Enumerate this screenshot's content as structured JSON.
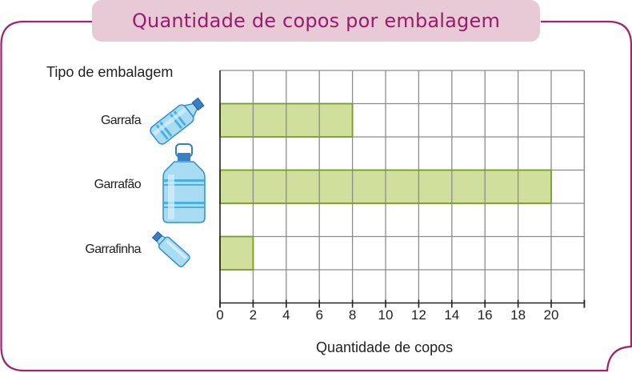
{
  "title": "Quantidade de copos por embalagem",
  "colors": {
    "frame": "#a3216f",
    "title_bg": "#e8cad6",
    "title_text": "#9c1a6b",
    "bar_fill": "#d1df9c",
    "bar_stroke": "#76a028",
    "grid": "#8c8c8c",
    "axis": "#222222"
  },
  "y_axis_title": "Tipo de embalagem",
  "x_axis_title": "Quantidade de copos",
  "x_ticks": [
    "0",
    "2",
    "4",
    "6",
    "8",
    "10",
    "12",
    "14",
    "16",
    "18",
    "20"
  ],
  "categories": [
    {
      "label": "Garrafa",
      "icon": "bottle-icon"
    },
    {
      "label": "Garrafão",
      "icon": "water-jug-icon"
    },
    {
      "label": "Garrafinha",
      "icon": "small-bottle-icon"
    }
  ],
  "chart_data": {
    "type": "bar",
    "orientation": "horizontal",
    "title": "Quantidade de copos por embalagem",
    "categories": [
      "Garrafa",
      "Garrafão",
      "Garrafinha"
    ],
    "values": [
      8,
      20,
      2
    ],
    "xlabel": "Quantidade de copos",
    "ylabel": "Tipo de embalagem",
    "xlim": [
      0,
      22
    ],
    "x_ticks": [
      0,
      2,
      4,
      6,
      8,
      10,
      12,
      14,
      16,
      18,
      20
    ],
    "grid": true,
    "legend": null
  }
}
